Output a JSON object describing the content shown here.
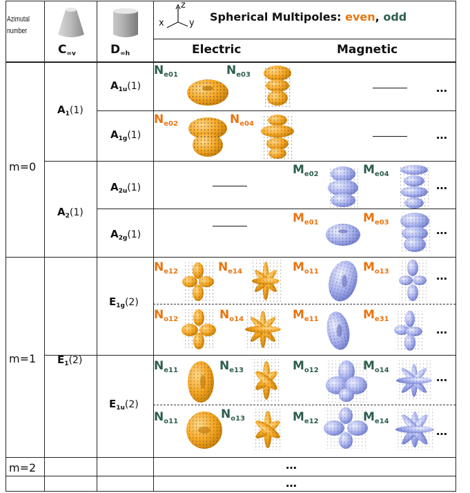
{
  "header": {
    "azimuthal_label": "Azimutal\nnumber",
    "azimuthal_line1": "Azimutal",
    "azimuthal_line2": "number",
    "cinf_label": "C",
    "cinf_sub": "∞v",
    "dinf_label": "D",
    "dinf_sub": "∞h",
    "title_prefix": "Spherical Multipoles: ",
    "title_even": "even",
    "title_sep": ", ",
    "title_odd": "odd",
    "axis_x": "x",
    "axis_y": "y",
    "axis_z": "z",
    "electric": "Electric",
    "magnetic": "Magnetic"
  },
  "colors": {
    "even": "#e87411",
    "odd": "#2d5e4e",
    "electric_shape": "#f5a623",
    "magnetic_shape": "#8f9be6"
  },
  "rows": {
    "m0": "m=0",
    "m1": "m=1",
    "m2": "m=2",
    "ellipsis": "…"
  },
  "groups": {
    "A1": {
      "main": "A",
      "sub": "1",
      "deg": "(1)"
    },
    "A2": {
      "main": "A",
      "sub": "2",
      "deg": "(1)"
    },
    "E1": {
      "main": "E",
      "sub": "1",
      "deg": "(2)"
    }
  },
  "irreps": {
    "A1u": {
      "main": "A",
      "sub": "1u",
      "deg": "(1)"
    },
    "A1g": {
      "main": "A",
      "sub": "1g",
      "deg": "(1)"
    },
    "A2u": {
      "main": "A",
      "sub": "2u",
      "deg": "(1)"
    },
    "A2g": {
      "main": "A",
      "sub": "2g",
      "deg": "(1)"
    },
    "E1g": {
      "main": "E",
      "sub": "1g",
      "deg": "(2)"
    },
    "E1u": {
      "main": "E",
      "sub": "1u",
      "deg": "(2)"
    }
  },
  "multipoles": {
    "Ne01": {
      "main": "N",
      "sub": "e01"
    },
    "Ne03": {
      "main": "N",
      "sub": "e03"
    },
    "Ne02": {
      "main": "N",
      "sub": "e02"
    },
    "Ne04": {
      "main": "N",
      "sub": "e04"
    },
    "Me02": {
      "main": "M",
      "sub": "e02"
    },
    "Me04": {
      "main": "M",
      "sub": "e04"
    },
    "Me01": {
      "main": "M",
      "sub": "e01"
    },
    "Me03": {
      "main": "M",
      "sub": "e03"
    },
    "Ne12": {
      "main": "N",
      "sub": "e12"
    },
    "Ne14": {
      "main": "N",
      "sub": "e14"
    },
    "Mo11": {
      "main": "M",
      "sub": "o11"
    },
    "Mo13": {
      "main": "M",
      "sub": "o13"
    },
    "No12": {
      "main": "N",
      "sub": "o12"
    },
    "No14": {
      "main": "N",
      "sub": "o14"
    },
    "Me11": {
      "main": "M",
      "sub": "e11"
    },
    "Me31": {
      "main": "M",
      "sub": "e31"
    },
    "Ne11": {
      "main": "N",
      "sub": "e11"
    },
    "Ne13": {
      "main": "N",
      "sub": "e13"
    },
    "Mo12": {
      "main": "M",
      "sub": "o12"
    },
    "Mo14": {
      "main": "M",
      "sub": "o14"
    },
    "No11": {
      "main": "N",
      "sub": "o11"
    },
    "No13": {
      "main": "N",
      "sub": "o13"
    },
    "Me12": {
      "main": "M",
      "sub": "e12"
    },
    "Me14": {
      "main": "M",
      "sub": "e14"
    }
  }
}
